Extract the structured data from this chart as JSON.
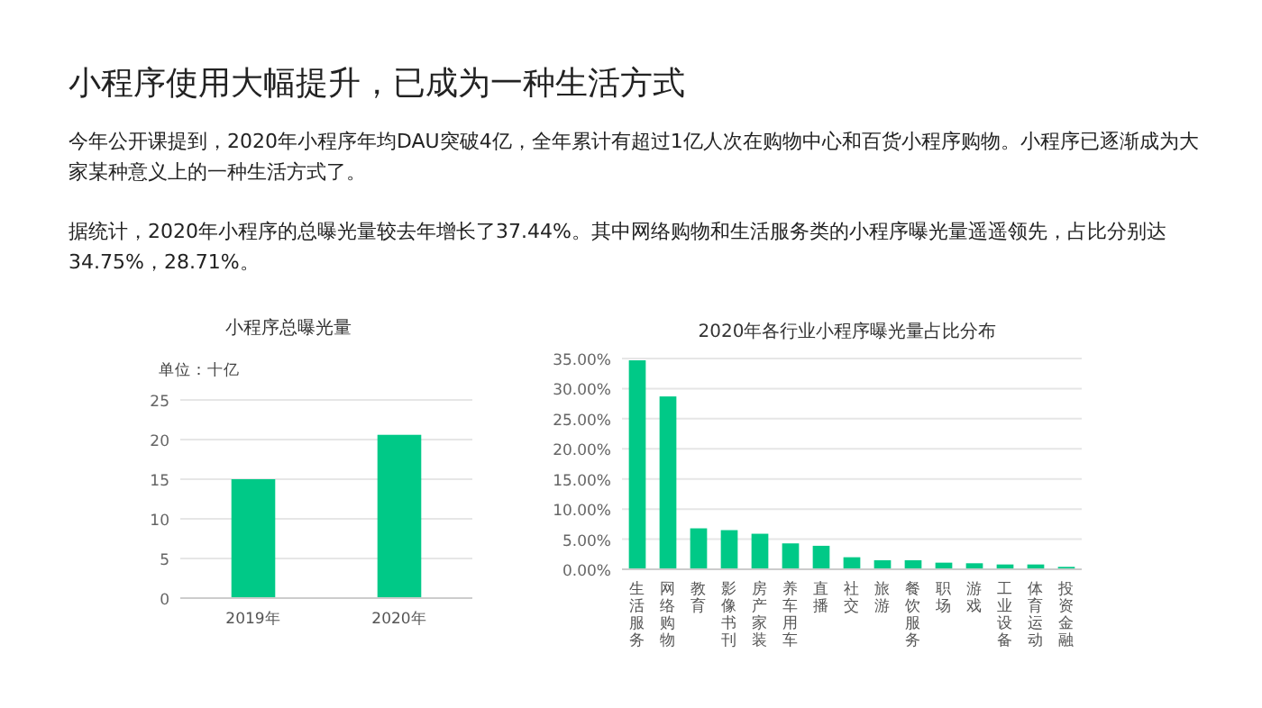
{
  "chart_data": [
    {
      "type": "bar",
      "title": "小程序总曝光量",
      "ylabel": "单位：十亿",
      "categories": [
        "2019年",
        "2020年"
      ],
      "values": [
        15,
        20.6
      ],
      "color": "#00c987",
      "ylim": [
        0,
        25
      ],
      "yticks": [
        0,
        5,
        10,
        15,
        20,
        25
      ],
      "grid": "y",
      "annotations": [
        "小程序使用大幅提升，已成为一种生活方式",
        "今年公开课提到，2020年小程序年均DAU突破4亿，全年累计有超过1亿人次在购物中心和百货小程序购物。小程序已逐渐成为大家某种意义上的一种生活方式了。",
        "据统计，2020年小程序的总曝光量较去年增长了37.44%。其中网络购物和生活服务类的小程序曝光量遥遥领先，占比分别达34.75%，28.71%。"
      ]
    },
    {
      "type": "bar",
      "title": "2020年各行业小程序曝光量占比分布",
      "categories": [
        "生活服务",
        "网络购物",
        "教育",
        "影像书刊",
        "房产家装",
        "养车用车",
        "直播",
        "社交",
        "旅游",
        "餐饮服务",
        "职场",
        "游戏",
        "工业设备",
        "体育运动",
        "投资金融"
      ],
      "values": [
        34.7,
        28.7,
        6.8,
        6.5,
        5.9,
        4.3,
        3.9,
        2.0,
        1.5,
        1.5,
        1.1,
        1.0,
        0.8,
        0.8,
        0.4
      ],
      "color": "#00c987",
      "ylim": [
        0,
        35
      ],
      "yticks": [
        {
          "value": 0,
          "label": "0.00%"
        },
        {
          "value": 5,
          "label": "5.00%"
        },
        {
          "value": 10,
          "label": "10.00%"
        },
        {
          "value": 15,
          "label": "15.00%"
        },
        {
          "value": 20,
          "label": "20.00%"
        },
        {
          "value": 25,
          "label": "25.00%"
        },
        {
          "value": 30,
          "label": "30.00%"
        },
        {
          "value": 35,
          "label": "35.00%"
        }
      ],
      "grid": "y"
    }
  ]
}
